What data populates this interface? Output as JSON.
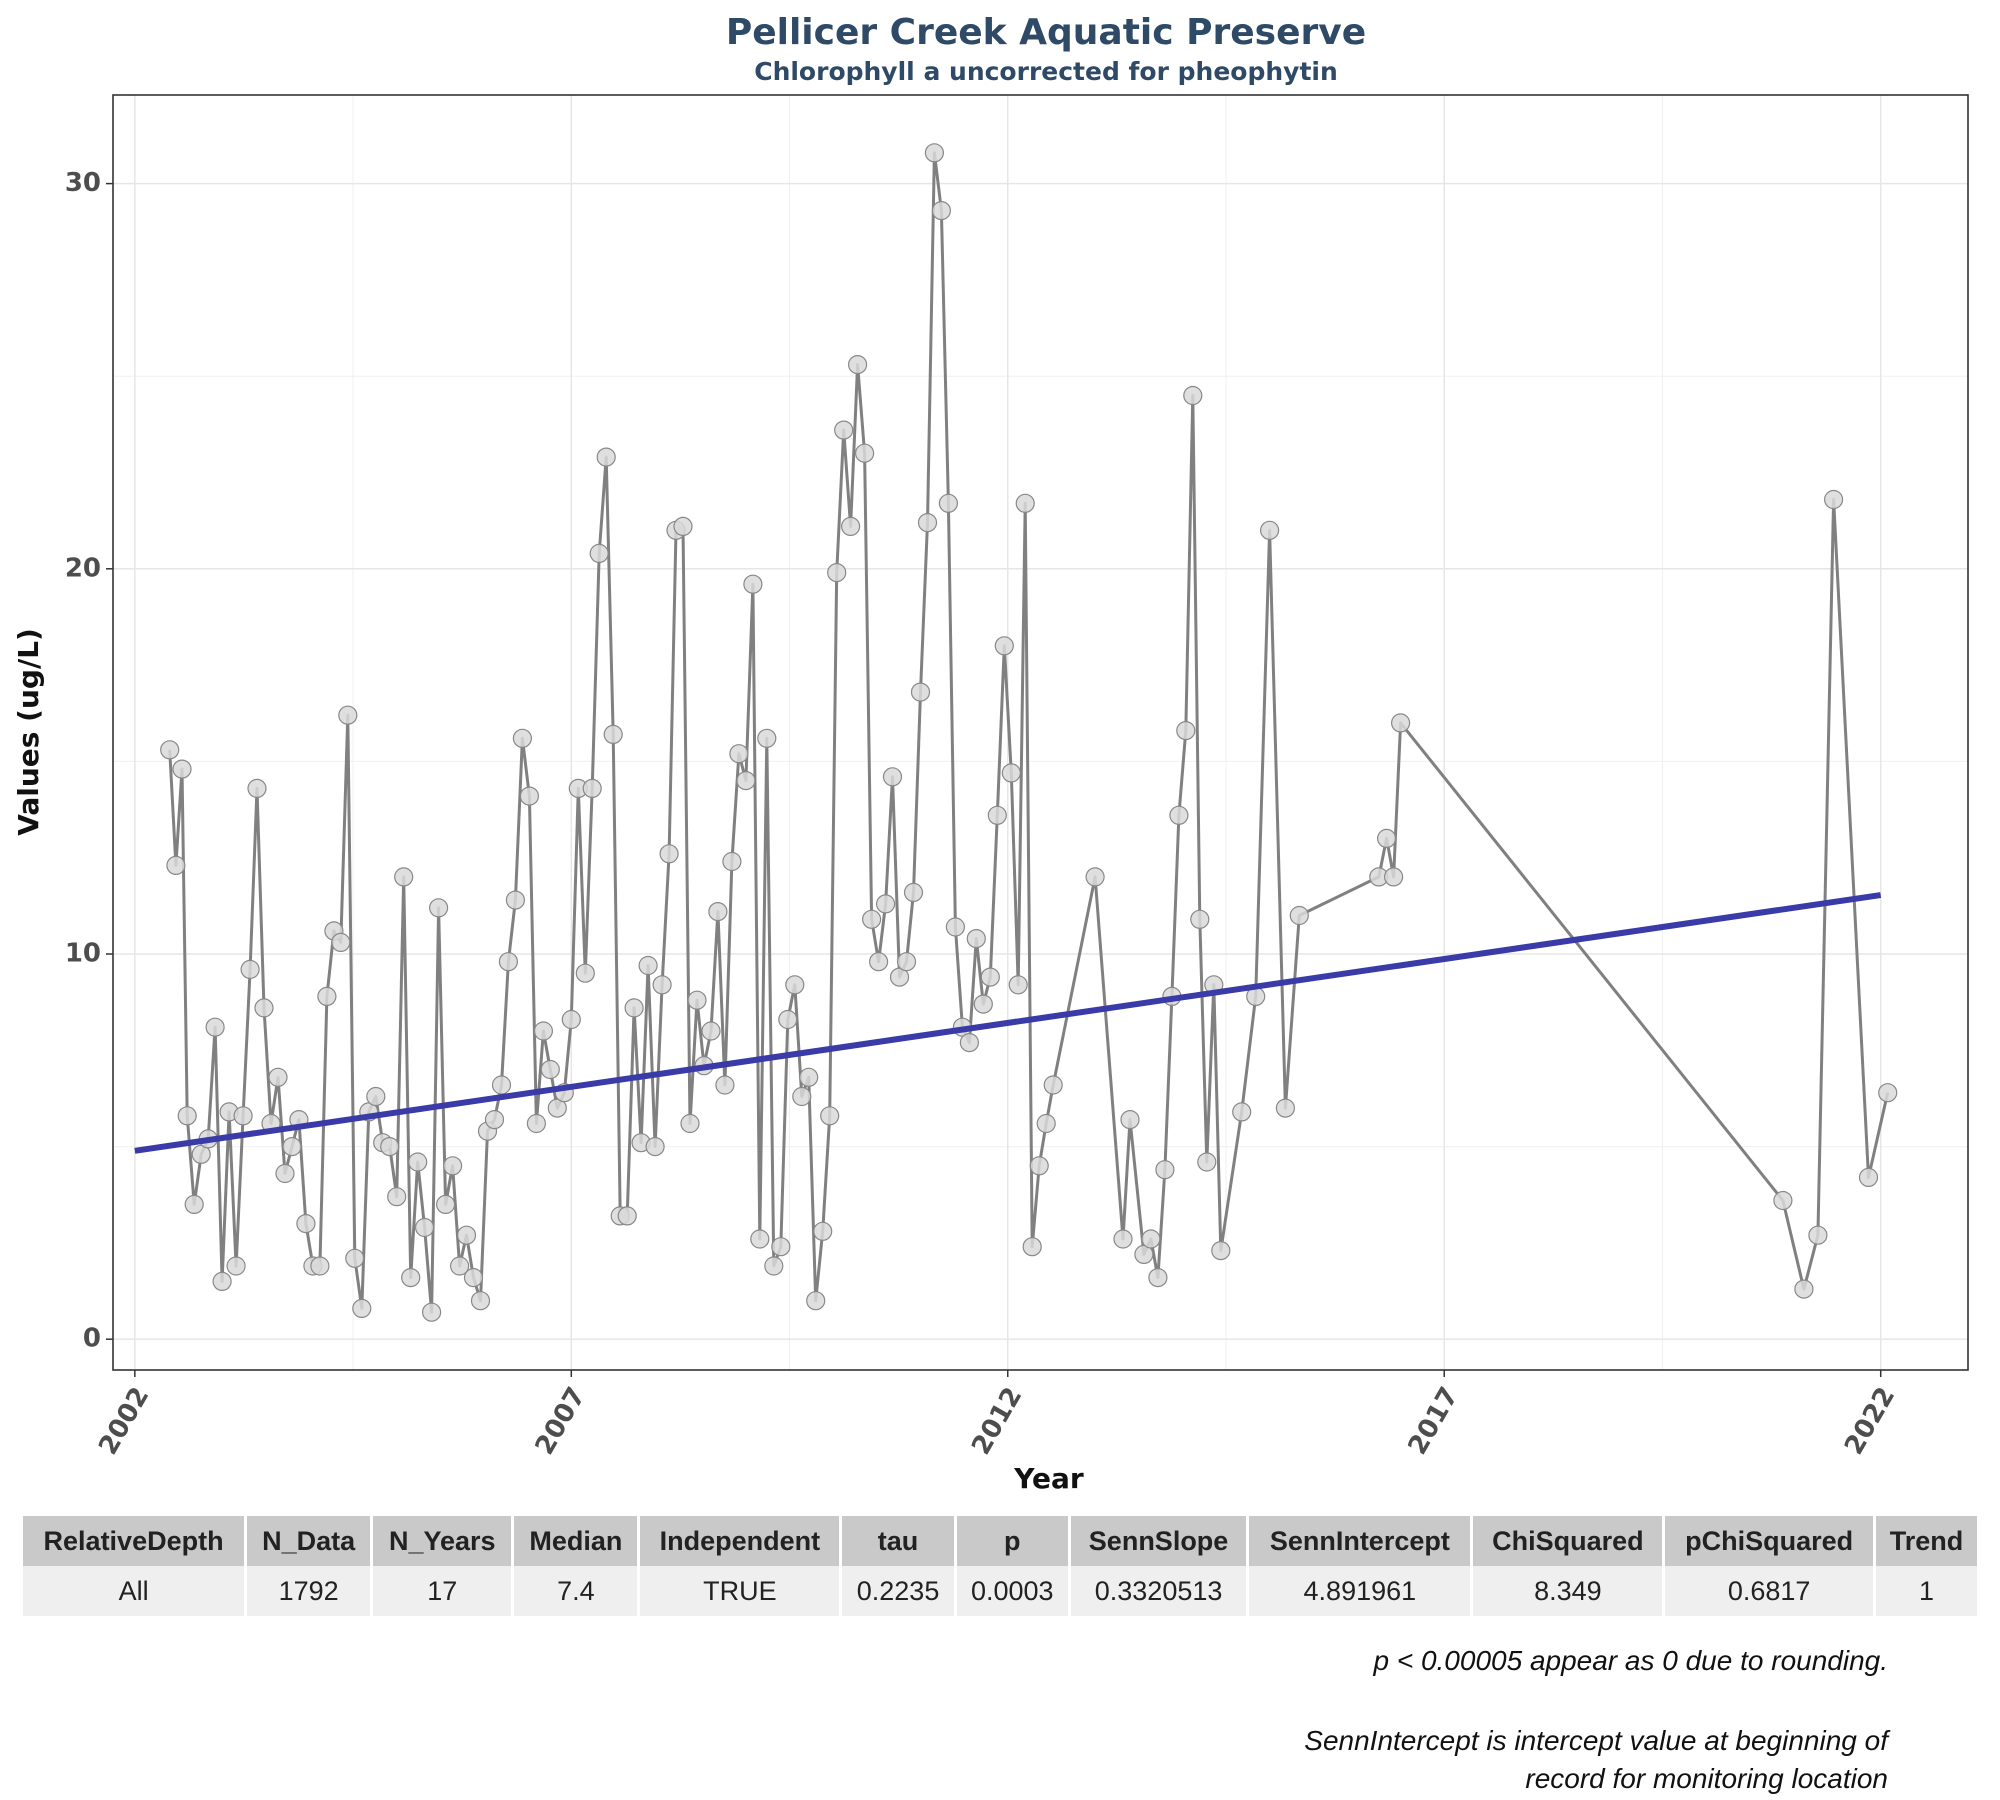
{
  "title": "Pellicer Creek Aquatic Preserve",
  "subtitle": "Chlorophyll a uncorrected for pheophytin",
  "chart_data": {
    "type": "line",
    "xlabel": "Year",
    "ylabel": "Values (ug/L)",
    "x_ticks": [
      2002,
      2007,
      2012,
      2017,
      2022
    ],
    "y_ticks": [
      0,
      10,
      20,
      30
    ],
    "xlim": [
      2001.75,
      2023.0
    ],
    "ylim": [
      -0.8,
      32.3
    ],
    "grid": true,
    "x_tick_rotation": "60 degrees",
    "colors": {
      "series": "#808080",
      "points": "#d9d9d9",
      "trend": "#3a3aa8"
    },
    "series": [
      {
        "values": [
          [
            2002.4,
            15.3
          ],
          [
            2002.47,
            12.3
          ],
          [
            2002.54,
            14.8
          ],
          [
            2002.6,
            5.8
          ],
          [
            2002.68,
            3.5
          ],
          [
            2002.76,
            4.8
          ],
          [
            2002.84,
            5.2
          ],
          [
            2002.92,
            8.1
          ],
          [
            2003.0,
            1.5
          ],
          [
            2003.08,
            5.9
          ],
          [
            2003.16,
            1.9
          ],
          [
            2003.24,
            5.8
          ],
          [
            2003.32,
            9.6
          ],
          [
            2003.4,
            14.3
          ],
          [
            2003.48,
            8.6
          ],
          [
            2003.56,
            5.6
          ],
          [
            2003.64,
            6.8
          ],
          [
            2003.72,
            4.3
          ],
          [
            2003.8,
            5.0
          ],
          [
            2003.88,
            5.7
          ],
          [
            2003.96,
            3.0
          ],
          [
            2004.04,
            1.9
          ],
          [
            2004.12,
            1.9
          ],
          [
            2004.2,
            8.9
          ],
          [
            2004.28,
            10.6
          ],
          [
            2004.36,
            10.3
          ],
          [
            2004.44,
            16.2
          ],
          [
            2004.52,
            2.1
          ],
          [
            2004.6,
            0.8
          ],
          [
            2004.68,
            5.9
          ],
          [
            2004.76,
            6.3
          ],
          [
            2004.84,
            5.1
          ],
          [
            2004.92,
            5.0
          ],
          [
            2005.0,
            3.7
          ],
          [
            2005.08,
            12.0
          ],
          [
            2005.16,
            1.6
          ],
          [
            2005.24,
            4.6
          ],
          [
            2005.32,
            2.9
          ],
          [
            2005.4,
            0.7
          ],
          [
            2005.48,
            11.2
          ],
          [
            2005.56,
            3.5
          ],
          [
            2005.64,
            4.5
          ],
          [
            2005.72,
            1.9
          ],
          [
            2005.8,
            2.7
          ],
          [
            2005.88,
            1.6
          ],
          [
            2005.96,
            1.0
          ],
          [
            2006.04,
            5.4
          ],
          [
            2006.12,
            5.7
          ],
          [
            2006.2,
            6.6
          ],
          [
            2006.28,
            9.8
          ],
          [
            2006.36,
            11.4
          ],
          [
            2006.44,
            15.6
          ],
          [
            2006.52,
            14.1
          ],
          [
            2006.6,
            5.6
          ],
          [
            2006.68,
            8.0
          ],
          [
            2006.76,
            7.0
          ],
          [
            2006.84,
            6.0
          ],
          [
            2006.92,
            6.4
          ],
          [
            2007.0,
            8.3
          ],
          [
            2007.08,
            14.3
          ],
          [
            2007.16,
            9.5
          ],
          [
            2007.24,
            14.3
          ],
          [
            2007.32,
            20.4
          ],
          [
            2007.4,
            22.9
          ],
          [
            2007.48,
            15.7
          ],
          [
            2007.56,
            3.2
          ],
          [
            2007.64,
            3.2
          ],
          [
            2007.72,
            8.6
          ],
          [
            2007.8,
            5.1
          ],
          [
            2007.88,
            9.7
          ],
          [
            2007.96,
            5.0
          ],
          [
            2008.04,
            9.2
          ],
          [
            2008.12,
            12.6
          ],
          [
            2008.2,
            21.0
          ],
          [
            2008.28,
            21.1
          ],
          [
            2008.36,
            5.6
          ],
          [
            2008.44,
            8.8
          ],
          [
            2008.52,
            7.1
          ],
          [
            2008.6,
            8.0
          ],
          [
            2008.68,
            11.1
          ],
          [
            2008.76,
            6.6
          ],
          [
            2008.84,
            12.4
          ],
          [
            2008.92,
            15.2
          ],
          [
            2009.0,
            14.5
          ],
          [
            2009.08,
            19.6
          ],
          [
            2009.16,
            2.6
          ],
          [
            2009.24,
            15.6
          ],
          [
            2009.32,
            1.9
          ],
          [
            2009.4,
            2.4
          ],
          [
            2009.48,
            8.3
          ],
          [
            2009.56,
            9.2
          ],
          [
            2009.64,
            6.3
          ],
          [
            2009.72,
            6.8
          ],
          [
            2009.8,
            1.0
          ],
          [
            2009.88,
            2.8
          ],
          [
            2009.96,
            5.8
          ],
          [
            2010.04,
            19.9
          ],
          [
            2010.12,
            23.6
          ],
          [
            2010.2,
            21.1
          ],
          [
            2010.28,
            25.3
          ],
          [
            2010.36,
            23.0
          ],
          [
            2010.44,
            10.9
          ],
          [
            2010.52,
            9.8
          ],
          [
            2010.6,
            11.3
          ],
          [
            2010.68,
            14.6
          ],
          [
            2010.76,
            9.4
          ],
          [
            2010.84,
            9.8
          ],
          [
            2010.92,
            11.6
          ],
          [
            2011.0,
            16.8
          ],
          [
            2011.08,
            21.2
          ],
          [
            2011.16,
            30.8
          ],
          [
            2011.24,
            29.3
          ],
          [
            2011.32,
            21.7
          ],
          [
            2011.4,
            10.7
          ],
          [
            2011.48,
            8.1
          ],
          [
            2011.56,
            7.7
          ],
          [
            2011.64,
            10.4
          ],
          [
            2011.72,
            8.7
          ],
          [
            2011.8,
            9.4
          ],
          [
            2011.88,
            13.6
          ],
          [
            2011.96,
            18.0
          ],
          [
            2012.04,
            14.7
          ],
          [
            2012.12,
            9.2
          ],
          [
            2012.2,
            21.7
          ],
          [
            2012.28,
            2.4
          ],
          [
            2012.36,
            4.5
          ],
          [
            2012.44,
            5.6
          ],
          [
            2012.52,
            6.6
          ],
          [
            2013.0,
            12.0
          ],
          [
            2013.32,
            2.6
          ],
          [
            2013.4,
            5.7
          ],
          [
            2013.56,
            2.2
          ],
          [
            2013.64,
            2.6
          ],
          [
            2013.72,
            1.6
          ],
          [
            2013.8,
            4.4
          ],
          [
            2013.88,
            8.9
          ],
          [
            2013.96,
            13.6
          ],
          [
            2014.04,
            15.8
          ],
          [
            2014.12,
            24.5
          ],
          [
            2014.2,
            10.9
          ],
          [
            2014.28,
            4.6
          ],
          [
            2014.36,
            9.2
          ],
          [
            2014.44,
            2.3
          ],
          [
            2014.68,
            5.9
          ],
          [
            2014.84,
            8.9
          ],
          [
            2015.0,
            21.0
          ],
          [
            2015.18,
            6.0
          ],
          [
            2015.34,
            11.0
          ],
          [
            2016.25,
            12.0
          ],
          [
            2016.34,
            13.0
          ],
          [
            2016.42,
            12.0
          ],
          [
            2016.5,
            16.0
          ],
          [
            2020.88,
            3.6
          ],
          [
            2021.12,
            1.3
          ],
          [
            2021.28,
            2.7
          ],
          [
            2021.46,
            21.8
          ],
          [
            2021.86,
            4.2
          ],
          [
            2022.08,
            6.4
          ]
        ]
      }
    ],
    "trend_line": {
      "x": [
        2002.0,
        2022.0
      ],
      "y": [
        4.89,
        11.53
      ]
    }
  },
  "table": {
    "headers": [
      "RelativeDepth",
      "N_Data",
      "N_Years",
      "Median",
      "Independent",
      "tau",
      "p",
      "SennSlope",
      "SennIntercept",
      "ChiSquared",
      "pChiSquared",
      "Trend"
    ],
    "rows": [
      [
        "All",
        "1792",
        "17",
        "7.4",
        "TRUE",
        "0.2235",
        "0.0003",
        "0.3320513",
        "4.891961",
        "8.349",
        "0.6817",
        "1"
      ]
    ]
  },
  "notes": {
    "rounding": "p < 0.00005 appear as 0 due to rounding.",
    "intercept_line1": "SennIntercept is intercept value at beginning of",
    "intercept_line2": "record for monitoring location"
  }
}
